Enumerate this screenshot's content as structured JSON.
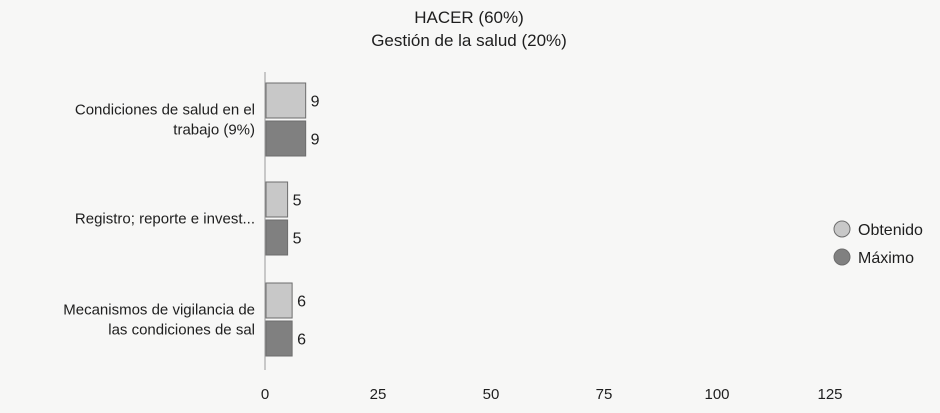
{
  "chart_data": {
    "type": "bar",
    "orientation": "horizontal",
    "title": "HACER (60%)",
    "subtitle": "Gestión de la salud (20%)",
    "categories": [
      [
        "Condiciones de salud en el",
        "trabajo (9%)"
      ],
      [
        "Registro; reporte e invest..."
      ],
      [
        "Mecanismos de vigilancia de",
        "las condiciones de sal"
      ]
    ],
    "series": [
      {
        "name": "Obtenido",
        "values": [
          9,
          5,
          6
        ],
        "color": "#c8c8c8"
      },
      {
        "name": "Máximo",
        "values": [
          9,
          5,
          6
        ],
        "color": "#808080"
      }
    ],
    "xlim": [
      0,
      125
    ],
    "xticks": [
      "0",
      "25",
      "50",
      "75",
      "100",
      "125"
    ],
    "legend_position": "right",
    "grid": false
  }
}
